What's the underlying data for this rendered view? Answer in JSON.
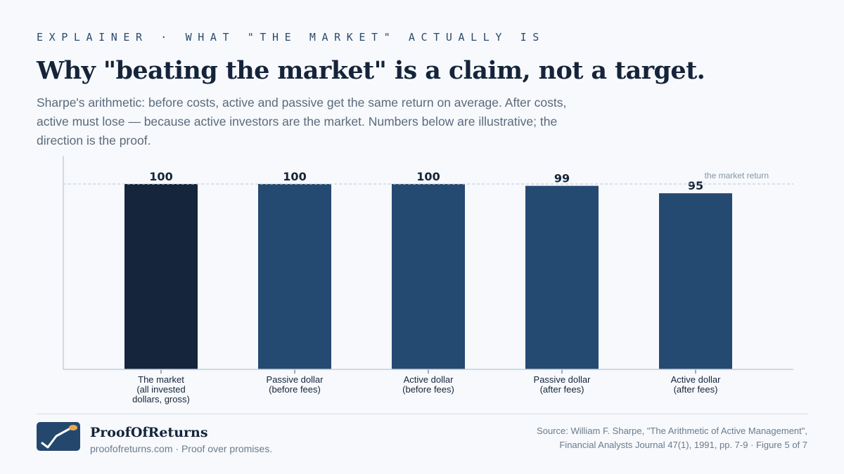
{
  "kicker": "EXPLAINER · WHAT \"THE MARKET\" ACTUALLY IS",
  "title": "Why \"beating the market\" is a claim, not a target.",
  "subtitle": "Sharpe's arithmetic: before costs, active and passive get the same return on average. After costs, active must lose — because active investors are the market. Numbers below are illustrative; the direction is the proof.",
  "colors": {
    "market_bar": "#15253b",
    "other_bars": "#254a71",
    "reference_line": "#c7d2dd",
    "axis": "#c3cfdc"
  },
  "chart_data": {
    "type": "bar",
    "categories": [
      [
        "The market",
        "(all invested",
        "dollars, gross)"
      ],
      [
        "Passive dollar",
        "(before fees)"
      ],
      [
        "Active dollar",
        "(before fees)"
      ],
      [
        "Passive dollar",
        "(after fees)"
      ],
      [
        "Active dollar",
        "(after fees)"
      ]
    ],
    "values": [
      100,
      100,
      100,
      99,
      95
    ],
    "value_labels": [
      "100",
      "100",
      "100",
      "99",
      "95"
    ],
    "reference_line": {
      "value": 100,
      "label": "the market return",
      "style": "dashed"
    },
    "ylim": [
      0,
      100
    ],
    "grid": false,
    "legend": "none",
    "xlabel": "",
    "ylabel": ""
  },
  "footer": {
    "brand_name": "ProofOfReturns",
    "tagline": "proofofreturns.com · Proof over promises.",
    "source": "Source: William F. Sharpe, \"The Arithmetic of Active Management\", Financial Analysts Journal 47(1), 1991, pp. 7-9 · Figure 5 of 7",
    "logo_icon": "checkmark-chart-icon"
  }
}
